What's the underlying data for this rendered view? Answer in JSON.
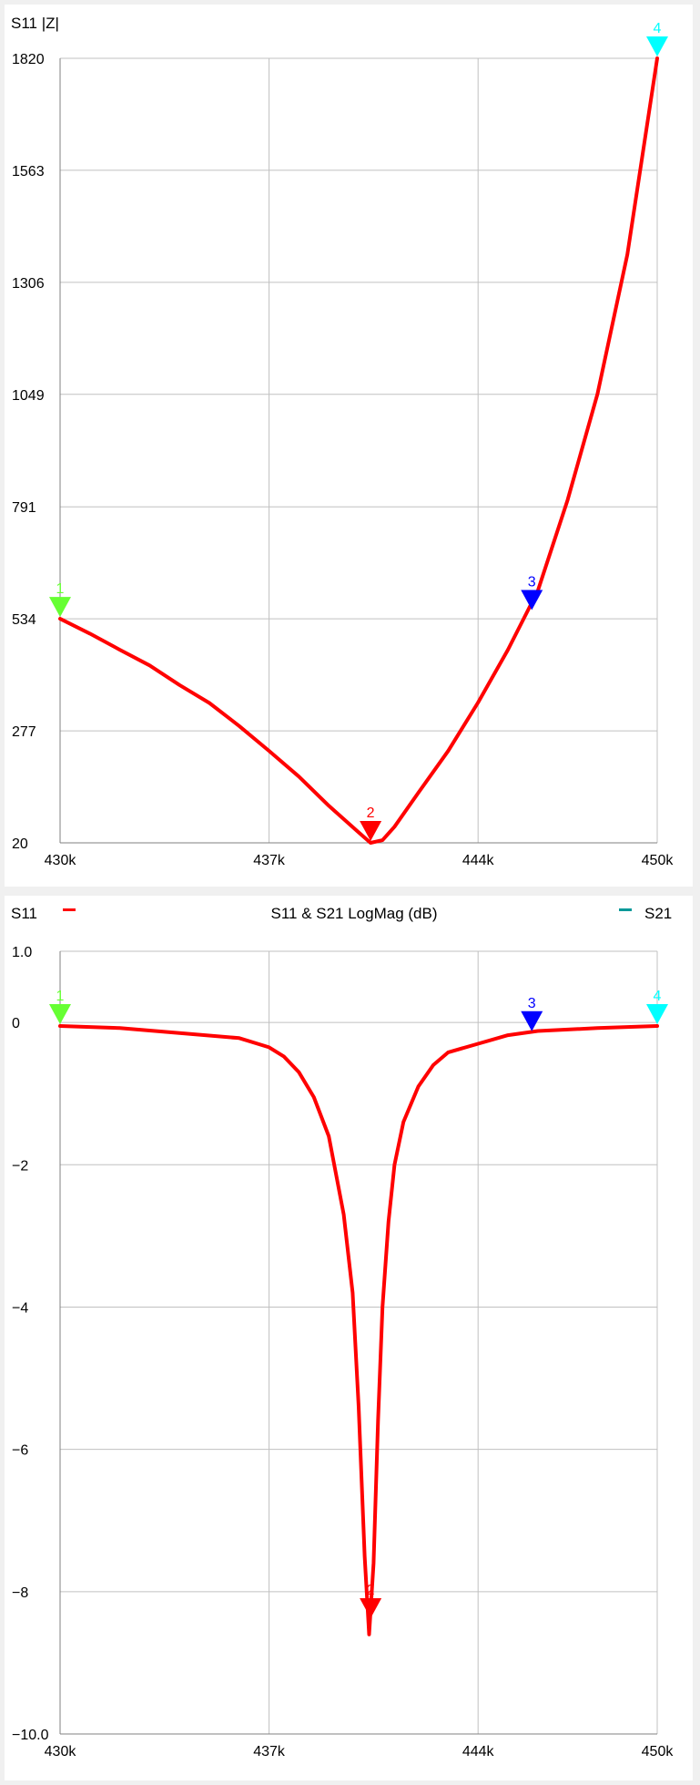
{
  "chart_data": [
    {
      "type": "line",
      "title": "S11 |Z|",
      "x_ticks": [
        "430k",
        "437k",
        "444k",
        "450k"
      ],
      "y_ticks": [
        "20",
        "277",
        "534",
        "791",
        "1049",
        "1306",
        "1563",
        "1820"
      ],
      "xlim": [
        430,
        450
      ],
      "ylim": [
        20,
        1820
      ],
      "grid": true,
      "series": [
        {
          "name": "S11",
          "color": "#ff0000",
          "x": [
            430,
            431,
            432,
            433,
            434,
            435,
            436,
            437,
            438,
            439,
            440,
            440.4,
            440.8,
            441.2,
            442,
            443,
            444,
            445,
            446,
            447,
            448,
            449,
            450
          ],
          "y": [
            534,
            500,
            463,
            427,
            382,
            341,
            288,
            231,
            172,
            105,
            44,
            20,
            26,
            57,
            135,
            231,
            342,
            463,
            598,
            807,
            1050,
            1370,
            1820
          ]
        }
      ],
      "markers": [
        {
          "label": "1",
          "x": 430.0,
          "y": 534,
          "color": "#66ff33"
        },
        {
          "label": "2",
          "x": 440.4,
          "y": 20,
          "color": "#ff0000"
        },
        {
          "label": "3",
          "x": 445.8,
          "y": 550,
          "color": "#0000ff"
        },
        {
          "label": "4",
          "x": 450.0,
          "y": 1820,
          "color": "#00ffff"
        }
      ]
    },
    {
      "type": "line",
      "title": "S11 & S21 LogMag (dB)",
      "legend_left": "S11",
      "legend_right": "S21",
      "legend_left_color": "#ff0000",
      "legend_right_color": "#009999",
      "x_ticks": [
        "430k",
        "437k",
        "444k",
        "450k"
      ],
      "y_ticks": [
        "1.0",
        "0",
        "−2",
        "−4",
        "−6",
        "−8",
        "−10.0"
      ],
      "xlim": [
        430,
        450
      ],
      "ylim": [
        -10,
        1
      ],
      "grid": true,
      "series": [
        {
          "name": "S11",
          "color": "#ff0000",
          "x": [
            430,
            432,
            434,
            436,
            437,
            437.5,
            438,
            438.5,
            439,
            439.5,
            439.8,
            440,
            440.2,
            440.35,
            440.5,
            440.65,
            440.8,
            441,
            441.2,
            441.5,
            442,
            442.5,
            443,
            444,
            445,
            446,
            448,
            450
          ],
          "y": [
            -0.05,
            -0.08,
            -0.15,
            -0.22,
            -0.35,
            -0.48,
            -0.7,
            -1.05,
            -1.6,
            -2.7,
            -3.8,
            -5.4,
            -7.5,
            -8.6,
            -7.6,
            -5.6,
            -4.0,
            -2.8,
            -2.0,
            -1.4,
            -0.9,
            -0.6,
            -0.42,
            -0.3,
            -0.18,
            -0.12,
            -0.08,
            -0.05
          ]
        }
      ],
      "markers": [
        {
          "label": "1",
          "x": 430.0,
          "y": -0.05,
          "color": "#66ff33"
        },
        {
          "label": "2",
          "x": 440.4,
          "y": -8.4,
          "color": "#ff0000"
        },
        {
          "label": "3",
          "x": 445.8,
          "y": -0.15,
          "color": "#0000ff"
        },
        {
          "label": "4",
          "x": 450.0,
          "y": -0.05,
          "color": "#00ffff"
        }
      ]
    }
  ]
}
